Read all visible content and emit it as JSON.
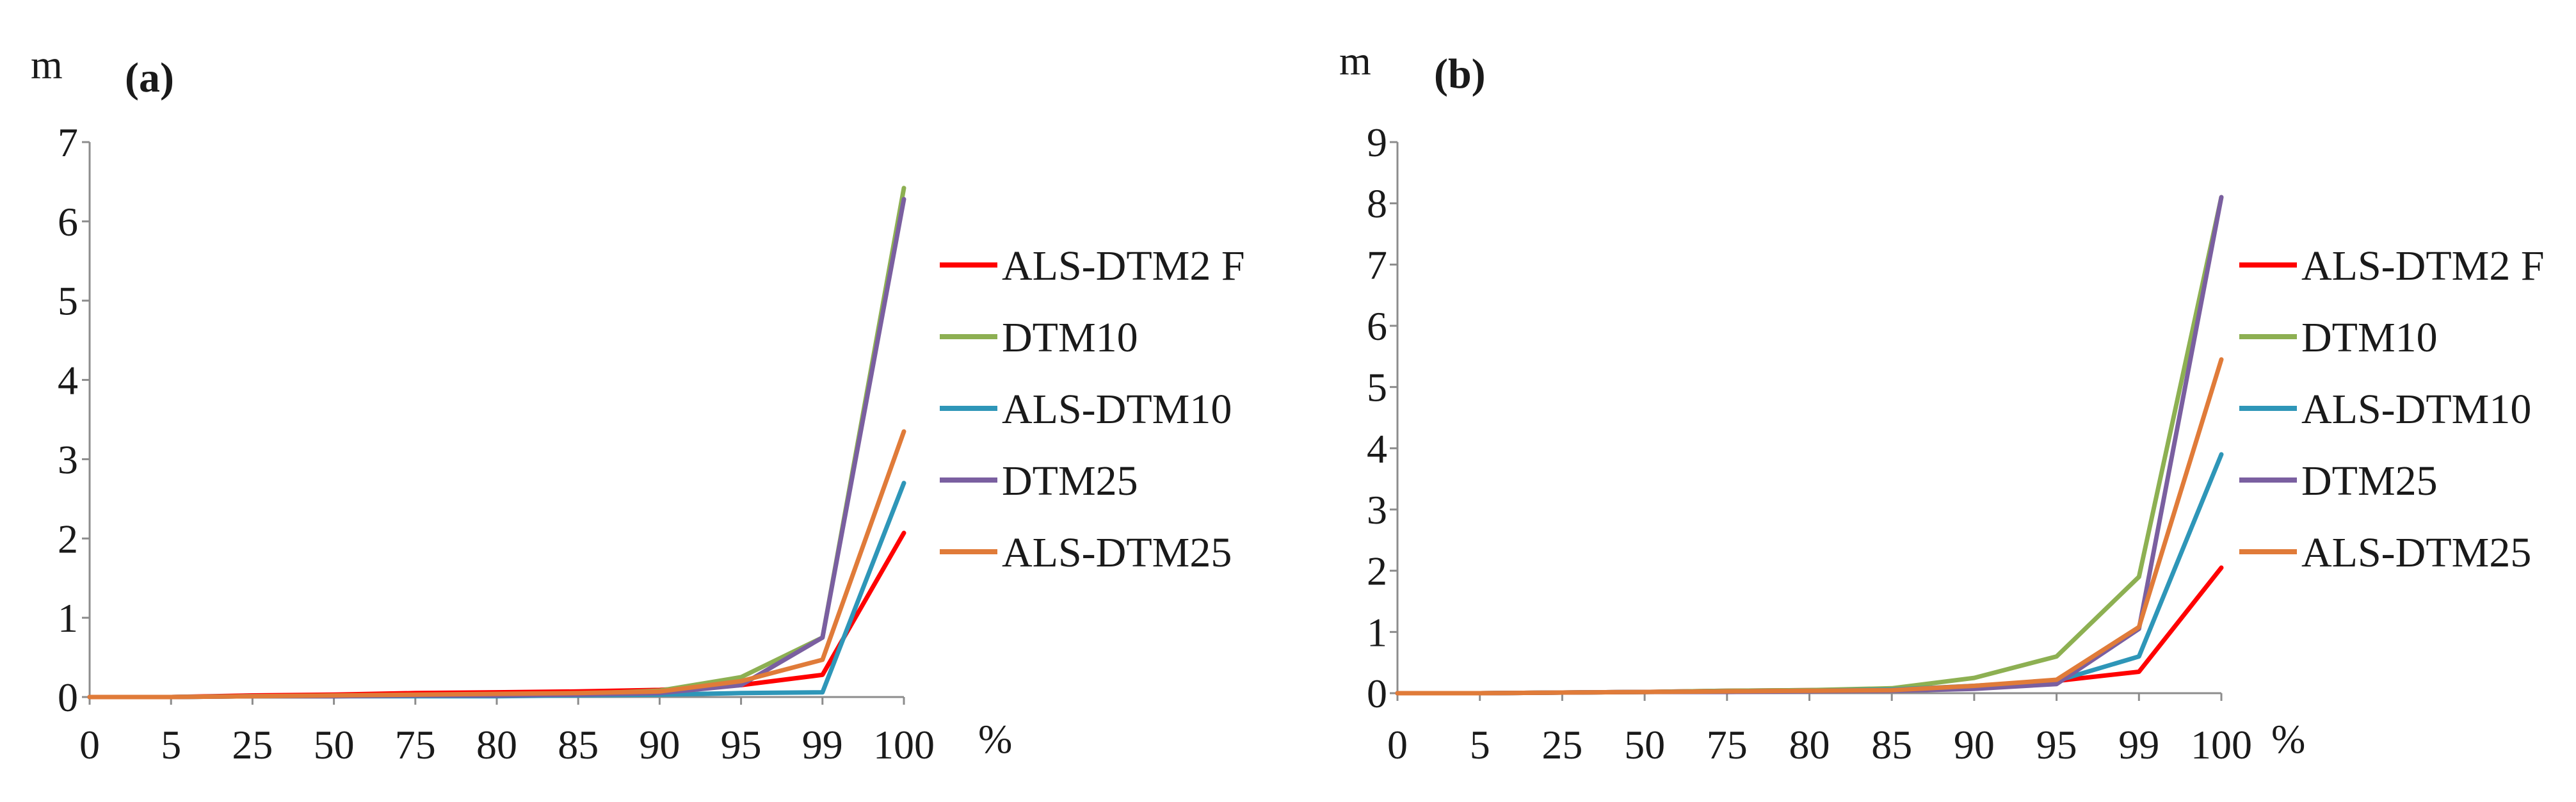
{
  "chart_data": [
    {
      "type": "line",
      "panel_label": "(a)",
      "y_unit": "m",
      "x_unit": "%",
      "categories": [
        "0",
        "5",
        "25",
        "50",
        "75",
        "80",
        "85",
        "90",
        "95",
        "99",
        "100"
      ],
      "ylim": [
        0,
        7
      ],
      "yticks": [
        0,
        1,
        2,
        3,
        4,
        5,
        6,
        7
      ],
      "grid": false,
      "legend_position": "right",
      "series": [
        {
          "name": "ALS-DTM2 F",
          "color": "#ff0000",
          "values": [
            0,
            0,
            0.02,
            0.03,
            0.05,
            0.06,
            0.07,
            0.09,
            0.15,
            0.28,
            2.07
          ]
        },
        {
          "name": "DTM10",
          "color": "#8db052",
          "values": [
            0,
            0,
            0.01,
            0.01,
            0.02,
            0.03,
            0.04,
            0.08,
            0.25,
            0.75,
            6.42
          ]
        },
        {
          "name": "ALS-DTM10",
          "color": "#2e96b8",
          "values": [
            0,
            0,
            0.01,
            0.01,
            0.01,
            0.01,
            0.02,
            0.03,
            0.05,
            0.06,
            2.7
          ]
        },
        {
          "name": "DTM25",
          "color": "#7a5fa0",
          "values": [
            0,
            0,
            0.01,
            0.01,
            0.02,
            0.02,
            0.03,
            0.05,
            0.15,
            0.75,
            6.28
          ]
        },
        {
          "name": "ALS-DTM25",
          "color": "#e07b39",
          "values": [
            0,
            0,
            0.01,
            0.02,
            0.03,
            0.04,
            0.05,
            0.07,
            0.2,
            0.47,
            3.35
          ]
        }
      ]
    },
    {
      "type": "line",
      "panel_label": "(b)",
      "y_unit": "m",
      "x_unit": "%",
      "categories": [
        "0",
        "5",
        "25",
        "50",
        "75",
        "80",
        "85",
        "90",
        "95",
        "99",
        "100"
      ],
      "ylim": [
        0,
        9
      ],
      "yticks": [
        0,
        1,
        2,
        3,
        4,
        5,
        6,
        7,
        8,
        9
      ],
      "grid": false,
      "legend_position": "right",
      "series": [
        {
          "name": "ALS-DTM2 F",
          "color": "#ff0000",
          "values": [
            0,
            0,
            0.01,
            0.02,
            0.04,
            0.05,
            0.06,
            0.1,
            0.2,
            0.35,
            2.05
          ]
        },
        {
          "name": "DTM10",
          "color": "#8db052",
          "values": [
            0,
            0,
            0.01,
            0.02,
            0.04,
            0.05,
            0.08,
            0.25,
            0.6,
            1.9,
            8.1
          ]
        },
        {
          "name": "ALS-DTM10",
          "color": "#2e96b8",
          "values": [
            0,
            0,
            0.01,
            0.02,
            0.03,
            0.04,
            0.06,
            0.12,
            0.2,
            0.6,
            3.9
          ]
        },
        {
          "name": "DTM25",
          "color": "#7a5fa0",
          "values": [
            0,
            0,
            0.01,
            0.02,
            0.02,
            0.03,
            0.04,
            0.07,
            0.15,
            1.05,
            8.1
          ]
        },
        {
          "name": "ALS-DTM25",
          "color": "#e07b39",
          "values": [
            0,
            0,
            0.01,
            0.02,
            0.03,
            0.04,
            0.05,
            0.12,
            0.22,
            1.08,
            5.45
          ]
        }
      ]
    }
  ]
}
